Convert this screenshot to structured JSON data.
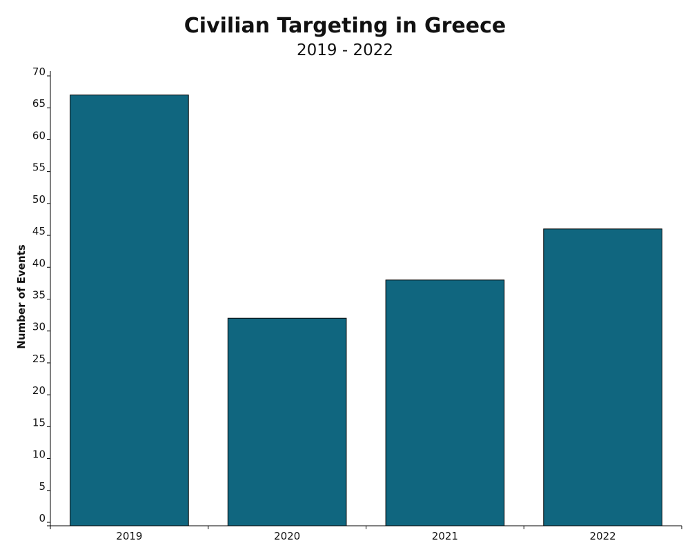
{
  "chart_data": {
    "type": "bar",
    "title": "Civilian Targeting in Greece",
    "subtitle": "2019 - 2022",
    "xlabel": "",
    "ylabel": "Number of Events",
    "categories": [
      "2019",
      "2020",
      "2021",
      "2022"
    ],
    "values": [
      67,
      32,
      38,
      46
    ],
    "ylim": [
      0,
      70
    ],
    "yticks": [
      0,
      5,
      10,
      15,
      20,
      25,
      30,
      35,
      40,
      45,
      50,
      55,
      60,
      65,
      70
    ],
    "bar_color": "#10667f",
    "grid": false,
    "legend": "none"
  }
}
